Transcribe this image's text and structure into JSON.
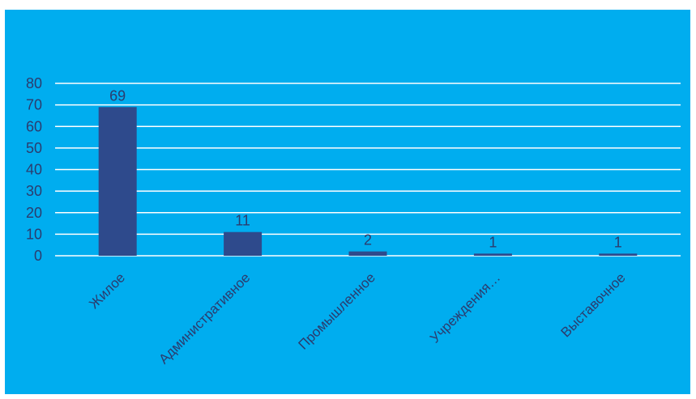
{
  "chart_data": {
    "type": "bar",
    "categories": [
      "Жилое",
      "Административное",
      "Промышленное",
      "Учреждения…",
      "Выставочное"
    ],
    "values": [
      69,
      11,
      2,
      1,
      1
    ],
    "data_labels": [
      "69",
      "11",
      "2",
      "1",
      "1"
    ],
    "yticks": [
      0,
      10,
      20,
      30,
      40,
      50,
      60,
      70,
      80
    ],
    "ylim": [
      0,
      80
    ],
    "grid": true,
    "legend": "none",
    "colors": {
      "background": "#00ADEF",
      "bar": "#2E4A8C",
      "grid": "#FFFFFF",
      "text": "#2B3C6E"
    }
  }
}
